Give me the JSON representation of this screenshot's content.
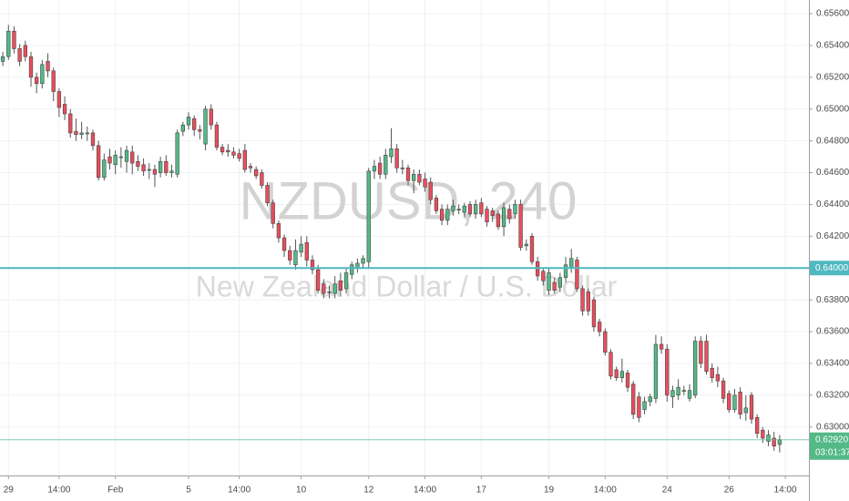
{
  "chart_data": {
    "type": "candlestick",
    "watermark": "NZDUSD, 240",
    "watermark_subtitle": "New Zealand Dollar / U.S. Dollar",
    "up_color": "#53b987",
    "down_color": "#eb4d5c",
    "xlim": [
      -0.5,
      143.2
    ],
    "ylim": [
      0.62695,
      0.65686
    ],
    "grid": true,
    "xticks": [
      {
        "value": 1,
        "label": "29"
      },
      {
        "value": 10,
        "label": "14:00"
      },
      {
        "value": 20,
        "label": "Feb"
      },
      {
        "value": 33,
        "label": "5"
      },
      {
        "value": 42,
        "label": "14:00"
      },
      {
        "value": 53,
        "label": "10"
      },
      {
        "value": 65,
        "label": "12"
      },
      {
        "value": 75,
        "label": "14:00"
      },
      {
        "value": 85,
        "label": "17"
      },
      {
        "value": 97,
        "label": "19"
      },
      {
        "value": 107,
        "label": "14:00"
      },
      {
        "value": 118,
        "label": "24"
      },
      {
        "value": 129,
        "label": "26"
      },
      {
        "value": 139,
        "label": "14:00"
      }
    ],
    "yticks": [
      {
        "value": 0.656,
        "label": "0.65600"
      },
      {
        "value": 0.654,
        "label": "0.65400"
      },
      {
        "value": 0.652,
        "label": "0.65200"
      },
      {
        "value": 0.65,
        "label": "0.65000"
      },
      {
        "value": 0.648,
        "label": "0.64800"
      },
      {
        "value": 0.646,
        "label": "0.64600"
      },
      {
        "value": 0.644,
        "label": "0.64400"
      },
      {
        "value": 0.642,
        "label": "0.64200"
      },
      {
        "value": 0.64,
        "label": "0.64000"
      },
      {
        "value": 0.638,
        "label": "0.63800"
      },
      {
        "value": 0.636,
        "label": "0.63600"
      },
      {
        "value": 0.634,
        "label": "0.63400"
      },
      {
        "value": 0.632,
        "label": "0.63200"
      },
      {
        "value": 0.63,
        "label": "0.63000"
      }
    ],
    "horizontal_line": {
      "value": 0.64,
      "label": "0.64000",
      "color": "#4fb8c0"
    },
    "last_price": {
      "value": 0.6292,
      "label": "0.62920",
      "countdown": "03:01:37",
      "color": "#53b987"
    },
    "open": [
      0.653,
      0.6533,
      0.6549,
      0.6538,
      0.654,
      0.6533,
      0.652,
      0.6516,
      0.653,
      0.6524,
      0.6511,
      0.6503,
      0.6497,
      0.6486,
      0.6484,
      0.6485,
      0.6485,
      0.6477,
      0.6457,
      0.647,
      0.6465,
      0.647,
      0.6467,
      0.6473,
      0.6467,
      0.6465,
      0.6462,
      0.6462,
      0.646,
      0.6467,
      0.646,
      0.6459,
      0.6486,
      0.649,
      0.6494,
      0.6487,
      0.6478,
      0.65,
      0.649,
      0.6476,
      0.6474,
      0.6473,
      0.6472,
      0.6474,
      0.6464,
      0.6462,
      0.646,
      0.6452,
      0.6441,
      0.6428,
      0.6419,
      0.6411,
      0.6402,
      0.641,
      0.6416,
      0.6405,
      0.6399,
      0.639,
      0.6385,
      0.6384,
      0.6392,
      0.6387,
      0.6396,
      0.64,
      0.6403,
      0.6404,
      0.6461,
      0.6466,
      0.6459,
      0.647,
      0.6475,
      0.6463,
      0.6463,
      0.6455,
      0.6459,
      0.6456,
      0.6454,
      0.6444,
      0.6437,
      0.643,
      0.6436,
      0.6437,
      0.6435,
      0.644,
      0.6434,
      0.6441,
      0.6437,
      0.6436,
      0.6434,
      0.6426,
      0.6437,
      0.6434,
      0.644,
      0.6414,
      0.642,
      0.6404,
      0.6398,
      0.6386,
      0.6391,
      0.6388,
      0.6394,
      0.64,
      0.6405,
      0.6387,
      0.6385,
      0.638,
      0.6366,
      0.636,
      0.6347,
      0.6336,
      0.6331,
      0.6334,
      0.6327,
      0.6319,
      0.6311,
      0.6316,
      0.6318,
      0.6352,
      0.6349,
      0.6319,
      0.632,
      0.6323,
      0.6318,
      0.632,
      0.6354,
      0.6354,
      0.6337,
      0.6333,
      0.6329,
      0.6321,
      0.6311,
      0.6322,
      0.6309,
      0.632,
      0.6306,
      0.6298,
      0.6291,
      0.6293,
      0.6289
    ],
    "high": [
      0.6536,
      0.6553,
      0.6552,
      0.6541,
      0.6543,
      0.6536,
      0.6523,
      0.6531,
      0.6535,
      0.6526,
      0.6513,
      0.6508,
      0.65,
      0.6494,
      0.6492,
      0.6489,
      0.6487,
      0.648,
      0.6472,
      0.6475,
      0.6474,
      0.6476,
      0.6477,
      0.6477,
      0.6471,
      0.6469,
      0.6466,
      0.6465,
      0.647,
      0.6471,
      0.6465,
      0.6487,
      0.6492,
      0.6498,
      0.6496,
      0.649,
      0.6502,
      0.6503,
      0.6492,
      0.6478,
      0.6478,
      0.6476,
      0.6475,
      0.6478,
      0.6466,
      0.6464,
      0.6462,
      0.6454,
      0.6443,
      0.643,
      0.6421,
      0.6414,
      0.6418,
      0.642,
      0.642,
      0.6408,
      0.6402,
      0.6393,
      0.6389,
      0.6395,
      0.6397,
      0.64,
      0.6404,
      0.6406,
      0.6408,
      0.6463,
      0.6468,
      0.647,
      0.6475,
      0.6488,
      0.6478,
      0.6468,
      0.6465,
      0.6462,
      0.6462,
      0.646,
      0.6457,
      0.6446,
      0.644,
      0.644,
      0.6443,
      0.644,
      0.6441,
      0.6442,
      0.6443,
      0.6444,
      0.6439,
      0.6438,
      0.6436,
      0.6441,
      0.644,
      0.6443,
      0.6443,
      0.6418,
      0.6422,
      0.6407,
      0.64,
      0.64,
      0.6394,
      0.6397,
      0.6407,
      0.6412,
      0.6407,
      0.6389,
      0.6387,
      0.6382,
      0.6368,
      0.6362,
      0.6349,
      0.6338,
      0.6343,
      0.6336,
      0.6329,
      0.6322,
      0.6319,
      0.6321,
      0.6358,
      0.6357,
      0.6352,
      0.6326,
      0.633,
      0.6326,
      0.6327,
      0.6357,
      0.6357,
      0.6358,
      0.634,
      0.6338,
      0.6331,
      0.6323,
      0.6324,
      0.6325,
      0.632,
      0.6322,
      0.6308,
      0.63,
      0.6298,
      0.6297,
      0.6295
    ],
    "low": [
      0.6527,
      0.6531,
      0.6535,
      0.6527,
      0.653,
      0.6514,
      0.651,
      0.6513,
      0.652,
      0.6505,
      0.6495,
      0.6493,
      0.6482,
      0.648,
      0.6481,
      0.648,
      0.6474,
      0.6455,
      0.6455,
      0.6462,
      0.6459,
      0.6463,
      0.646,
      0.6459,
      0.6461,
      0.6458,
      0.6456,
      0.6451,
      0.6457,
      0.6458,
      0.6457,
      0.6457,
      0.6483,
      0.6487,
      0.6483,
      0.6481,
      0.6474,
      0.6487,
      0.6474,
      0.6471,
      0.647,
      0.6469,
      0.6467,
      0.646,
      0.646,
      0.6456,
      0.645,
      0.6439,
      0.6425,
      0.6416,
      0.6407,
      0.6402,
      0.6399,
      0.6407,
      0.6401,
      0.6396,
      0.6384,
      0.6381,
      0.6381,
      0.6381,
      0.6382,
      0.6384,
      0.6393,
      0.6397,
      0.64,
      0.64,
      0.6456,
      0.6456,
      0.6456,
      0.6466,
      0.646,
      0.6459,
      0.6452,
      0.6447,
      0.6452,
      0.6448,
      0.644,
      0.6434,
      0.6427,
      0.6427,
      0.6433,
      0.6434,
      0.6432,
      0.6432,
      0.6431,
      0.6432,
      0.6426,
      0.6429,
      0.6424,
      0.642,
      0.6428,
      0.6431,
      0.6411,
      0.6411,
      0.6402,
      0.6392,
      0.6389,
      0.6383,
      0.6384,
      0.6385,
      0.6391,
      0.6397,
      0.6385,
      0.637,
      0.637,
      0.636,
      0.6357,
      0.6345,
      0.633,
      0.6329,
      0.6328,
      0.6322,
      0.6305,
      0.6303,
      0.6308,
      0.6313,
      0.6315,
      0.6346,
      0.6316,
      0.6312,
      0.6317,
      0.632,
      0.6316,
      0.6318,
      0.6337,
      0.6333,
      0.6328,
      0.6325,
      0.6315,
      0.6309,
      0.6309,
      0.6305,
      0.6304,
      0.6302,
      0.6293,
      0.629,
      0.6288,
      0.6285,
      0.6284
    ],
    "close": [
      0.6533,
      0.6549,
      0.6538,
      0.653,
      0.6533,
      0.652,
      0.6516,
      0.6528,
      0.6524,
      0.6511,
      0.6501,
      0.6497,
      0.6485,
      0.6484,
      0.6485,
      0.6485,
      0.6477,
      0.6457,
      0.6468,
      0.6466,
      0.6471,
      0.647,
      0.6474,
      0.6466,
      0.6464,
      0.6461,
      0.6462,
      0.6459,
      0.6467,
      0.646,
      0.6461,
      0.6485,
      0.649,
      0.6495,
      0.6487,
      0.6486,
      0.65,
      0.649,
      0.6476,
      0.6473,
      0.6473,
      0.6471,
      0.6469,
      0.6462,
      0.6463,
      0.6458,
      0.6452,
      0.6441,
      0.6428,
      0.6419,
      0.6411,
      0.6405,
      0.6411,
      0.6415,
      0.6405,
      0.6399,
      0.6386,
      0.6384,
      0.6385,
      0.639,
      0.6386,
      0.6397,
      0.6402,
      0.6403,
      0.6406,
      0.6461,
      0.6464,
      0.6459,
      0.6471,
      0.6475,
      0.6463,
      0.6463,
      0.6455,
      0.6459,
      0.6454,
      0.6451,
      0.6443,
      0.6436,
      0.643,
      0.6437,
      0.6439,
      0.6437,
      0.6439,
      0.6434,
      0.644,
      0.6434,
      0.6429,
      0.6433,
      0.6426,
      0.6438,
      0.6431,
      0.644,
      0.6413,
      0.6415,
      0.6404,
      0.6395,
      0.6392,
      0.6397,
      0.6386,
      0.6394,
      0.6402,
      0.6406,
      0.6387,
      0.6373,
      0.6373,
      0.6363,
      0.636,
      0.6347,
      0.6332,
      0.6331,
      0.6335,
      0.6325,
      0.6308,
      0.6306,
      0.6316,
      0.6319,
      0.6352,
      0.6349,
      0.632,
      0.6323,
      0.6325,
      0.6323,
      0.6323,
      0.6354,
      0.634,
      0.6335,
      0.6331,
      0.6329,
      0.6318,
      0.6311,
      0.632,
      0.6308,
      0.6312,
      0.6305,
      0.6296,
      0.6293,
      0.6295,
      0.6288,
      0.6292
    ]
  }
}
